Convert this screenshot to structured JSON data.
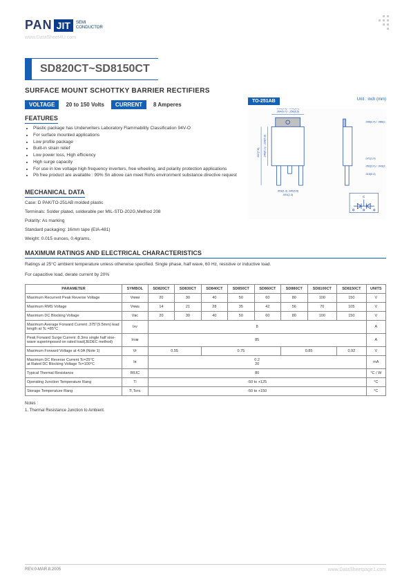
{
  "logo": {
    "left": "PAN",
    "right": "JIT",
    "sub1": "SEMI",
    "sub2": "CONDUCTOR"
  },
  "watermark_top": "www.DataSheet4U.com",
  "title": "SD820CT~SD8150CT",
  "subtitle": "SURFACE MOUNT SCHOTTKY BARRIER RECTIFIERS",
  "pills": {
    "voltage_lbl": "VOLTAGE",
    "voltage_val": "20 to 150  Volts",
    "current_lbl": "CURRENT",
    "current_val": "8 Amperes",
    "pkg_lbl": "TO-251AB",
    "unit": "Unit : inch (mm)"
  },
  "features_hdr": "FEATURES",
  "features": [
    "Plastic package has Underwriters Laboratory Flammability Classification 94V-O",
    "For surface mounted applications",
    "Low profile package",
    "Built-in strain relief",
    "Low power loss, High efficiency",
    "High surge capacity",
    "For use in low voltage high frequency inverters, free wheeling, and polarity protection applications",
    "Pb free product are available : 99% Sn above can meet Rohs environment substance directive request"
  ],
  "mech_hdr": "MECHANICAL DATA",
  "mech": [
    "Case: D PAK/TO-251AB molded plastic",
    "Terminals: Solder plated, solderable per MIL-STD-202G,Method 208",
    "Polarity:  As marking",
    "Standard packaging: 16mm tape (EIA-481)",
    "Weight: 0.015 ounces, 0.4grams."
  ],
  "ratings_hdr": "MAXIMUM RATINGS AND ELECTRICAL CHARACTERISTICS",
  "ratings_note1": "Ratings at 25°C ambient temperature unless otherwise specified.  Single phase, half wave, 60 Hz, resistive or inductive load.",
  "ratings_note2": "For capacitive load, derate current by 20%",
  "table": {
    "headers": [
      "PARAMETER",
      "SYMBOL",
      "SD820CT",
      "SD830CT",
      "SD840CT",
      "SD850CT",
      "SD860CT",
      "SD880CT",
      "SD8100CT",
      "SD8150CT",
      "UNITS"
    ],
    "rows": [
      {
        "p": "Maximum Recurrent Peak Reverse Voltage",
        "s": "Vʀʀᴍ",
        "v": [
          "20",
          "30",
          "40",
          "50",
          "60",
          "80",
          "100",
          "150"
        ],
        "u": "V"
      },
      {
        "p": "Maximum RMS Voltage",
        "s": "Vʀᴍs",
        "v": [
          "14",
          "21",
          "28",
          "35",
          "42",
          "56",
          "70",
          "105"
        ],
        "u": "V"
      },
      {
        "p": "Maximum DC Blocking Voltage",
        "s": "Vʙc",
        "v": [
          "20",
          "30",
          "40",
          "50",
          "60",
          "80",
          "100",
          "150"
        ],
        "u": "V"
      },
      {
        "p": "Maximum Average Forward  Current .375\"(9.5mm) lead length at Tc =85°C",
        "s": "Iᴀv",
        "span": "8",
        "u": "A"
      },
      {
        "p": "Peak Forward Surge Current :8.3ms single half sine-wave superimposed on rated load(JEDEC method)",
        "s": "Iғsᴍ",
        "span": "85",
        "u": "A"
      },
      {
        "p": "Maximum Forward Voltage at 4.0A   (Note 1)",
        "s": "Vғ",
        "merge": [
          {
            "c": 2,
            "t": "0.55"
          },
          {
            "c": 3,
            "t": "0.75"
          },
          {
            "c": 2,
            "t": "0.85"
          },
          {
            "c": 1,
            "t": "0.92"
          }
        ],
        "u": "V"
      },
      {
        "p": "Maximum DC Reverse Current Tc=25°C\nat Rated DC Blocking Voltage Tc=100°C",
        "s": "Iʀ",
        "span": "0.2\n20",
        "u": "mA"
      },
      {
        "p": "Typical Thermal Resistance",
        "s": "RθJC",
        "span": "80",
        "u": "°C / W"
      },
      {
        "p": "Operating Junction Temperature Rang",
        "s": "Tʲ",
        "span": "-50 to +125",
        "u": "°C"
      },
      {
        "p": "Storage Temperature Rang",
        "s": "Tʲ,Tsᴛɢ",
        "span": "-50 to +150",
        "u": "°C"
      }
    ]
  },
  "notes_hdr": "Notes :",
  "notes": [
    "1. Thermal Resistance Junction to Ambient."
  ],
  "footer_left": "REV.0-MAR.8.2005",
  "footer_right": "www.DataSheetpage1.com",
  "pkg_draw": {
    "body_w": 50,
    "body_h": 60,
    "tab_w": 38,
    "tab_h": 14,
    "leads": 3,
    "side_body_w": 14,
    "side_body_h": 60,
    "colors": {
      "outline": "#1a4aa5",
      "dim": "#1a4aa5",
      "fill": "#c0c0c0"
    },
    "dims_front": [
      ".264(6.7) / .256(6.5)",
      ".216(5.5) / .200(5.1)",
      ".091(2.3)",
      ".053(1.3)",
      ".045(0.6)",
      ".020(0.5)",
      ".035(0.89)"
    ],
    "dims_side": [
      ".096(2.4) / .086(2.2)",
      ".071(1.9)",
      ".052(2.0) / .043(2.1)",
      ".015(0.4)"
    ]
  }
}
